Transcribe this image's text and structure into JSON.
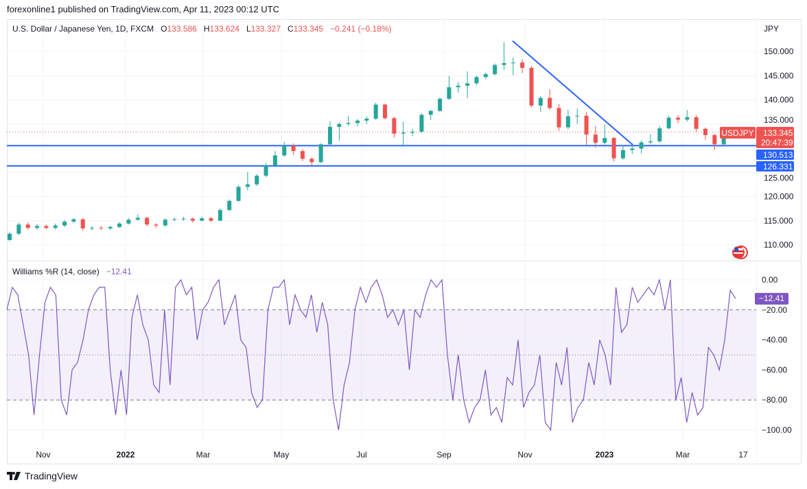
{
  "header": {
    "published": "forexonline1 published on TradingView.com, Apr 11, 2023 00:12 UTC"
  },
  "legend": {
    "symbol": "U.S. Dollar / Japanese Yen, 1D, FXCM",
    "o_label": "O",
    "o": "133.586",
    "h_label": "H",
    "h": "133.624",
    "l_label": "L",
    "l": "133.327",
    "c_label": "C",
    "c": "133.345",
    "change": "−0.241 (−0.18%)"
  },
  "price_axis": {
    "currency": "JPY",
    "ticks": [
      "150.000",
      "145.000",
      "140.000",
      "135.000",
      "125.000",
      "120.000",
      "115.000",
      "110.000"
    ]
  },
  "badges": {
    "symbol": "USDJPY",
    "last_price": "133.345",
    "countdown": "20:47:39",
    "level1": "130.513",
    "level2": "126.331"
  },
  "williams": {
    "title": "Williams %R (14, close)",
    "value": "−12.41",
    "ticks": [
      "0.00",
      "−20.00",
      "−40.00",
      "−60.00",
      "−80.00",
      "−100.00"
    ]
  },
  "time_axis": [
    "Nov",
    "2022",
    "Mar",
    "May",
    "Jul",
    "Sep",
    "Nov",
    "2023",
    "Mar",
    "17"
  ],
  "footer": {
    "brand": "TradingView"
  },
  "colors": {
    "up": "#26a69a",
    "down": "#ef5350",
    "lines": "#2962ff",
    "williams": "#7e57c2"
  },
  "chart_data": [
    {
      "type": "candlestick",
      "title": "U.S. Dollar / Japanese Yen, 1D, FXCM",
      "ylabel": "JPY",
      "ylim": [
        107,
        153
      ],
      "horizontal_levels": [
        130.513,
        126.331
      ],
      "last_price": 133.345,
      "trendline": [
        151.9,
        131.4
      ],
      "candles": [
        [
          111.0,
          112.6,
          110.8,
          112.3
        ],
        [
          112.3,
          114.6,
          112.0,
          114.2
        ],
        [
          114.2,
          114.7,
          113.2,
          113.5
        ],
        [
          113.5,
          114.3,
          113.1,
          113.9
        ],
        [
          113.9,
          114.2,
          113.2,
          113.5
        ],
        [
          113.5,
          114.4,
          113.2,
          114.0
        ],
        [
          114.0,
          115.1,
          113.7,
          114.8
        ],
        [
          114.8,
          115.5,
          114.5,
          115.3
        ],
        [
          115.3,
          115.5,
          112.9,
          113.4
        ],
        [
          113.4,
          113.9,
          113.0,
          113.5
        ],
        [
          113.5,
          113.9,
          113.1,
          113.4
        ],
        [
          113.4,
          114.0,
          113.1,
          113.7
        ],
        [
          113.7,
          114.7,
          113.5,
          114.4
        ],
        [
          114.4,
          115.5,
          114.2,
          115.2
        ],
        [
          115.2,
          116.3,
          115.0,
          115.6
        ],
        [
          115.6,
          115.8,
          113.9,
          114.2
        ],
        [
          114.2,
          114.5,
          113.5,
          114.0
        ],
        [
          114.0,
          115.5,
          113.8,
          115.2
        ],
        [
          115.2,
          115.7,
          114.9,
          115.3
        ],
        [
          115.3,
          115.8,
          115.0,
          115.4
        ],
        [
          115.4,
          115.7,
          114.6,
          115.0
        ],
        [
          115.0,
          115.8,
          114.8,
          115.5
        ],
        [
          115.5,
          115.8,
          114.7,
          115.0
        ],
        [
          115.0,
          117.5,
          114.9,
          117.2
        ],
        [
          117.2,
          119.4,
          117.0,
          119.1
        ],
        [
          119.1,
          122.3,
          118.9,
          122.0
        ],
        [
          122.0,
          125.1,
          121.3,
          122.5
        ],
        [
          122.5,
          124.6,
          122.2,
          124.3
        ],
        [
          124.3,
          126.9,
          124.0,
          126.4
        ],
        [
          126.4,
          129.4,
          126.1,
          128.5
        ],
        [
          128.5,
          131.3,
          128.2,
          130.5
        ],
        [
          130.5,
          131.0,
          128.6,
          129.4
        ],
        [
          129.4,
          129.8,
          127.3,
          127.8
        ],
        [
          127.8,
          128.1,
          126.4,
          127.1
        ],
        [
          127.1,
          131.0,
          126.9,
          130.8
        ],
        [
          130.8,
          135.6,
          130.5,
          134.4
        ],
        [
          134.4,
          135.3,
          131.5,
          135.0
        ],
        [
          135.0,
          136.7,
          134.6,
          135.2
        ],
        [
          135.2,
          136.0,
          134.5,
          135.7
        ],
        [
          135.7,
          136.6,
          135.0,
          136.1
        ],
        [
          136.1,
          139.4,
          135.8,
          139.0
        ],
        [
          139.0,
          139.2,
          135.9,
          136.2
        ],
        [
          136.2,
          136.5,
          132.2,
          133.0
        ],
        [
          133.0,
          135.5,
          130.4,
          133.2
        ],
        [
          133.2,
          134.0,
          132.5,
          133.4
        ],
        [
          133.4,
          137.2,
          133.1,
          136.9
        ],
        [
          136.9,
          138.0,
          135.8,
          137.7
        ],
        [
          137.7,
          140.5,
          137.5,
          140.2
        ],
        [
          140.2,
          144.9,
          140.0,
          142.6
        ],
        [
          142.6,
          143.7,
          141.5,
          142.9
        ],
        [
          142.9,
          145.9,
          140.4,
          143.4
        ],
        [
          143.4,
          145.0,
          143.0,
          144.7
        ],
        [
          144.7,
          145.6,
          144.3,
          145.3
        ],
        [
          145.3,
          147.5,
          145.0,
          147.2
        ],
        [
          147.2,
          151.9,
          146.2,
          147.6
        ],
        [
          147.6,
          148.8,
          145.1,
          147.7
        ],
        [
          147.7,
          148.4,
          145.5,
          146.6
        ],
        [
          146.6,
          147.0,
          138.5,
          138.8
        ],
        [
          138.8,
          140.8,
          137.5,
          140.4
        ],
        [
          140.4,
          142.2,
          137.9,
          138.3
        ],
        [
          138.3,
          139.1,
          133.6,
          134.3
        ],
        [
          134.3,
          137.9,
          133.9,
          136.6
        ],
        [
          136.6,
          138.2,
          135.0,
          136.7
        ],
        [
          136.7,
          137.5,
          130.6,
          132.8
        ],
        [
          132.8,
          134.6,
          130.1,
          131.1
        ],
        [
          131.1,
          134.8,
          130.8,
          132.1
        ],
        [
          132.1,
          132.3,
          127.2,
          127.9
        ],
        [
          127.9,
          130.6,
          127.6,
          129.6
        ],
        [
          129.6,
          131.0,
          128.8,
          129.9
        ],
        [
          129.9,
          131.6,
          128.9,
          131.2
        ],
        [
          131.2,
          132.9,
          130.8,
          131.4
        ],
        [
          131.4,
          134.6,
          131.1,
          134.1
        ],
        [
          134.1,
          136.7,
          133.9,
          136.3
        ],
        [
          136.3,
          136.8,
          135.2,
          135.9
        ],
        [
          135.9,
          137.9,
          135.5,
          136.4
        ],
        [
          136.4,
          136.8,
          133.4,
          134.0
        ],
        [
          134.0,
          134.3,
          131.7,
          132.7
        ],
        [
          132.7,
          133.0,
          129.6,
          130.8
        ],
        [
          130.8,
          133.8,
          130.6,
          132.8
        ],
        [
          132.8,
          133.6,
          132.0,
          133.3
        ]
      ]
    },
    {
      "type": "line",
      "title": "Williams %R (14, close)",
      "ylim": [
        -100,
        0
      ],
      "bands": [
        -20,
        -50,
        -80
      ],
      "values": [
        -20,
        -5,
        -10,
        -30,
        -50,
        -90,
        -50,
        -15,
        -5,
        -10,
        -80,
        -90,
        -60,
        -55,
        -40,
        -20,
        -10,
        -5,
        -5,
        -60,
        -90,
        -60,
        -90,
        -25,
        -10,
        -30,
        -40,
        -70,
        -75,
        -20,
        -70,
        -5,
        0,
        -10,
        -5,
        -40,
        -20,
        -15,
        -5,
        0,
        -30,
        -20,
        -10,
        -40,
        -45,
        -75,
        -85,
        -80,
        -20,
        -5,
        -5,
        0,
        -30,
        -10,
        -20,
        -25,
        -10,
        -35,
        -15,
        -30,
        -80,
        -100,
        -70,
        -55,
        -20,
        -5,
        -15,
        -5,
        0,
        -10,
        -25,
        -20,
        -30,
        -20,
        -60,
        -20,
        -25,
        -10,
        0,
        -5,
        0,
        -50,
        -80,
        -50,
        -80,
        -95,
        -85,
        -80,
        -60,
        -90,
        -85,
        -95,
        -65,
        -70,
        -40,
        -85,
        -75,
        -70,
        -50,
        -95,
        -100,
        -55,
        -70,
        -45,
        -95,
        -85,
        -80,
        -55,
        -70,
        -40,
        -50,
        -70,
        -5,
        -35,
        -30,
        -5,
        -15,
        -10,
        -5,
        -10,
        0,
        -20,
        0,
        -80,
        -65,
        -95,
        -75,
        -90,
        -85,
        -45,
        -50,
        -60,
        -40,
        -7,
        -12.41
      ]
    }
  ]
}
